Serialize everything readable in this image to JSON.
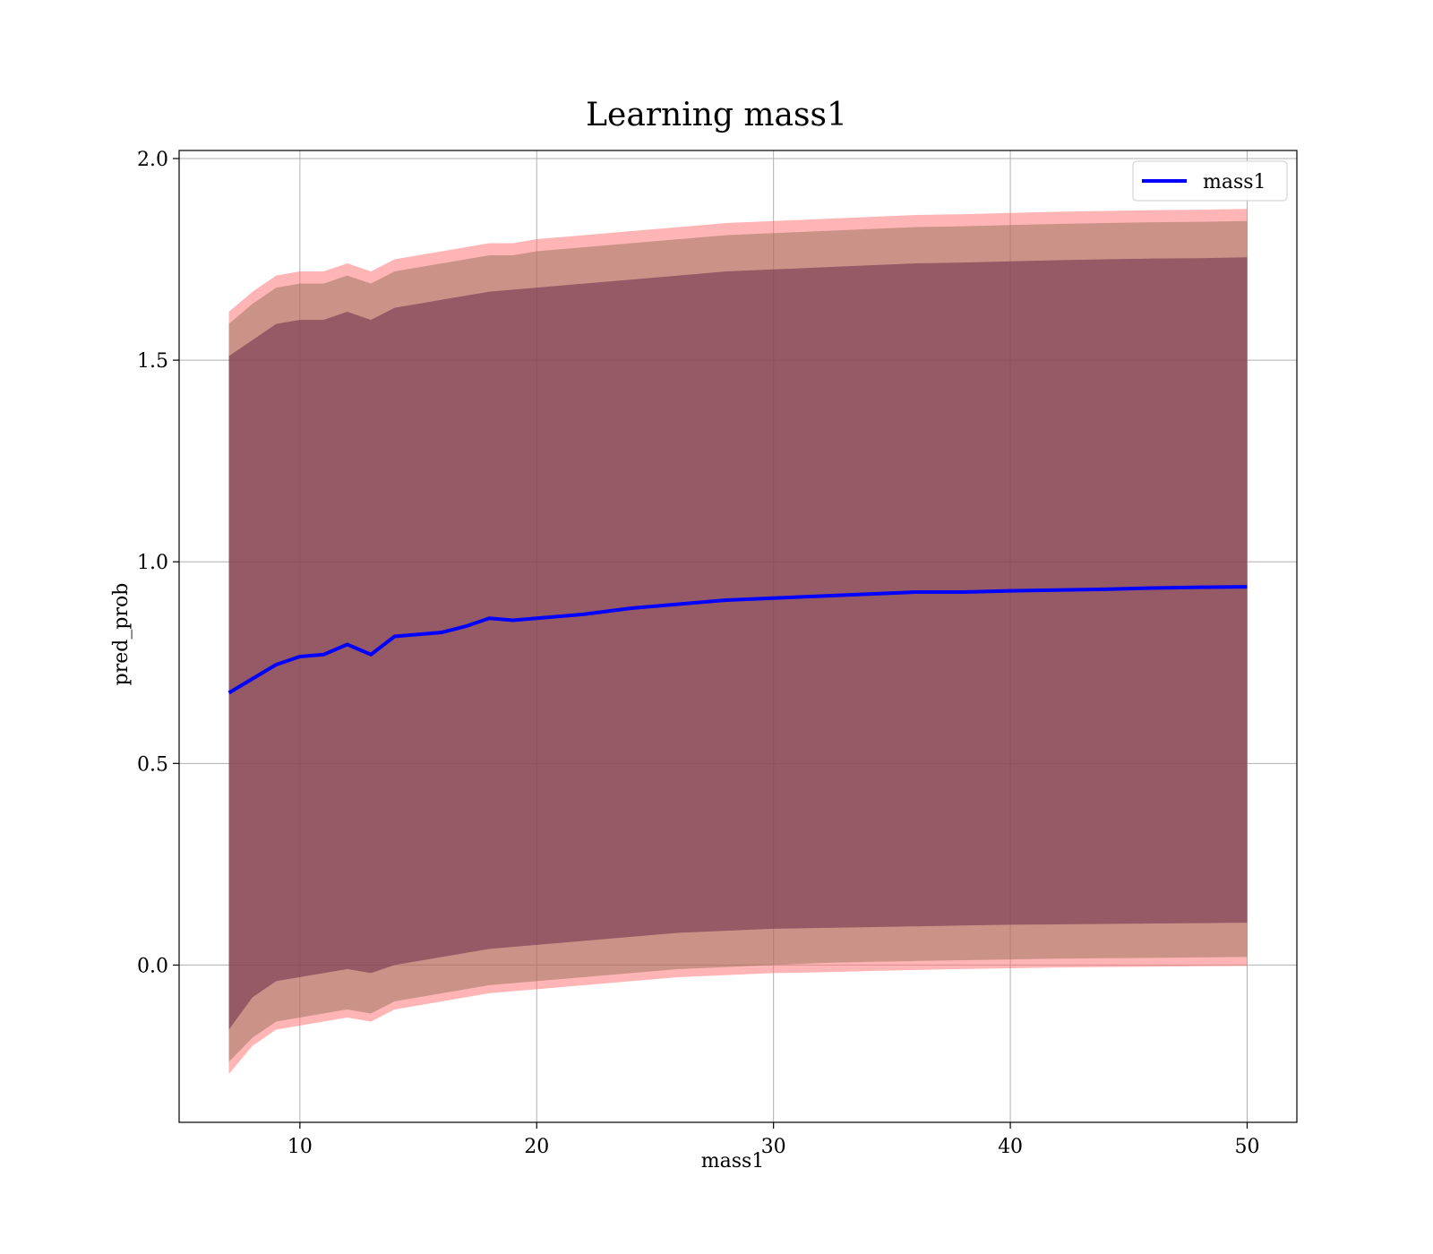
{
  "chart_data": {
    "type": "line",
    "title": "Learning mass1",
    "xlabel": "mass1",
    "ylabel": "pred_prob",
    "xlim": [
      4.9,
      52.1
    ],
    "ylim": [
      -0.39,
      2.02
    ],
    "x_ticks": [
      10,
      20,
      30,
      40,
      50
    ],
    "y_ticks": [
      0.0,
      0.5,
      1.0,
      1.5,
      2.0
    ],
    "x_tick_labels": [
      "10",
      "20",
      "30",
      "40",
      "50"
    ],
    "y_tick_labels": [
      "0.0",
      "0.5",
      "1.0",
      "1.5",
      "2.0"
    ],
    "grid": true,
    "legend_position": "top-right",
    "x": [
      7,
      8,
      9,
      10,
      11,
      12,
      13,
      14,
      15,
      16,
      17,
      18,
      19,
      20,
      22,
      24,
      26,
      28,
      30,
      32,
      34,
      36,
      38,
      40,
      42,
      44,
      46,
      48,
      50
    ],
    "series": [
      {
        "name": "mass1",
        "color": "#0000ff",
        "values": [
          0.675,
          0.71,
          0.745,
          0.765,
          0.77,
          0.795,
          0.77,
          0.815,
          0.82,
          0.825,
          0.84,
          0.86,
          0.855,
          0.86,
          0.87,
          0.885,
          0.895,
          0.905,
          0.91,
          0.915,
          0.92,
          0.925,
          0.925,
          0.928,
          0.93,
          0.932,
          0.935,
          0.937,
          0.938
        ]
      }
    ],
    "bands": [
      {
        "color": "#ff6b6b",
        "opacity": 0.5,
        "lower": [
          -0.27,
          -0.2,
          -0.16,
          -0.15,
          -0.14,
          -0.13,
          -0.14,
          -0.11,
          -0.1,
          -0.09,
          -0.08,
          -0.07,
          -0.065,
          -0.06,
          -0.05,
          -0.04,
          -0.03,
          -0.025,
          -0.02,
          -0.018,
          -0.015,
          -0.012,
          -0.01,
          -0.008,
          -0.006,
          -0.005,
          -0.004,
          -0.003,
          -0.002
        ],
        "upper": [
          1.62,
          1.67,
          1.71,
          1.72,
          1.72,
          1.74,
          1.72,
          1.75,
          1.76,
          1.77,
          1.78,
          1.79,
          1.79,
          1.8,
          1.81,
          1.82,
          1.83,
          1.84,
          1.845,
          1.85,
          1.855,
          1.86,
          1.862,
          1.865,
          1.868,
          1.87,
          1.872,
          1.873,
          1.875
        ]
      },
      {
        "color": "#8b6a4f",
        "opacity": 0.45,
        "lower": [
          -0.24,
          -0.18,
          -0.14,
          -0.13,
          -0.12,
          -0.11,
          -0.12,
          -0.09,
          -0.08,
          -0.07,
          -0.06,
          -0.05,
          -0.045,
          -0.04,
          -0.03,
          -0.02,
          -0.01,
          -0.005,
          0.0,
          0.005,
          0.008,
          0.01,
          0.012,
          0.014,
          0.016,
          0.017,
          0.018,
          0.019,
          0.02
        ],
        "upper": [
          1.59,
          1.64,
          1.68,
          1.69,
          1.69,
          1.71,
          1.69,
          1.72,
          1.73,
          1.74,
          1.75,
          1.76,
          1.76,
          1.77,
          1.78,
          1.79,
          1.8,
          1.81,
          1.815,
          1.82,
          1.825,
          1.83,
          1.832,
          1.835,
          1.838,
          1.84,
          1.842,
          1.843,
          1.845
        ]
      },
      {
        "color": "#6b2a4a",
        "opacity": 0.55,
        "lower": [
          -0.16,
          -0.08,
          -0.04,
          -0.03,
          -0.02,
          -0.01,
          -0.02,
          0.0,
          0.01,
          0.02,
          0.03,
          0.04,
          0.045,
          0.05,
          0.06,
          0.07,
          0.08,
          0.085,
          0.09,
          0.092,
          0.094,
          0.096,
          0.098,
          0.1,
          0.101,
          0.102,
          0.103,
          0.104,
          0.105
        ],
        "upper": [
          1.51,
          1.55,
          1.59,
          1.6,
          1.6,
          1.62,
          1.6,
          1.63,
          1.64,
          1.65,
          1.66,
          1.67,
          1.675,
          1.68,
          1.69,
          1.7,
          1.71,
          1.72,
          1.725,
          1.73,
          1.735,
          1.74,
          1.742,
          1.745,
          1.748,
          1.75,
          1.752,
          1.753,
          1.755
        ]
      }
    ]
  }
}
